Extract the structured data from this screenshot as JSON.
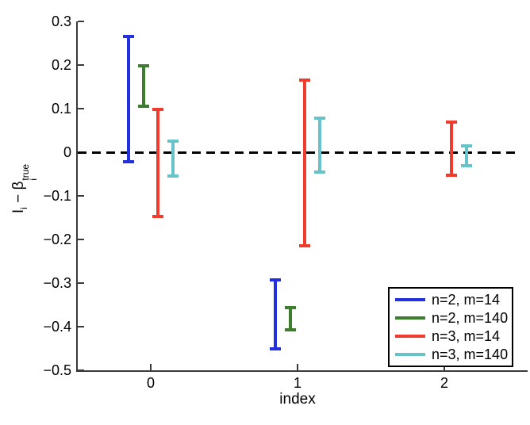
{
  "chart_data": {
    "type": "errorbar",
    "title": "",
    "xlabel": "index",
    "ylabel": "I_i − β_i^true",
    "ylabel_parts": {
      "term1_base": "I",
      "term1_sub": "i",
      "operator": " − ",
      "term2_base": "β",
      "term2_sub": "i",
      "term2_sup": "true"
    },
    "xlim": [
      -0.5,
      2.5
    ],
    "ylim": [
      -0.5,
      0.3
    ],
    "x_ticks": [
      0,
      1,
      2
    ],
    "x_tick_labels": [
      "0",
      "1",
      "2"
    ],
    "y_ticks": [
      0.3,
      0.2,
      0.1,
      0,
      -0.1,
      -0.2,
      -0.3,
      -0.4,
      -0.5
    ],
    "y_tick_labels": [
      "0.3",
      "0.2",
      "0.1",
      "0",
      "−0.1",
      "−0.2",
      "−0.3",
      "−0.4",
      "−0.5"
    ],
    "grid": false,
    "legend_position": "lower right",
    "zero_line": {
      "y": 0,
      "style": "dashed",
      "color": "#000000"
    },
    "series": [
      {
        "name": "n=2, m=14",
        "color": "#2230e0",
        "points": [
          {
            "x": -0.15,
            "low": -0.022,
            "high": 0.265
          },
          {
            "x": 0.85,
            "low": -0.45,
            "high": -0.292
          }
        ]
      },
      {
        "name": "n=2, m=140",
        "color": "#3c7e2d",
        "points": [
          {
            "x": -0.05,
            "low": 0.105,
            "high": 0.198
          },
          {
            "x": 0.95,
            "low": -0.408,
            "high": -0.357
          }
        ]
      },
      {
        "name": "n=3, m=14",
        "color": "#ef3c2e",
        "points": [
          {
            "x": 0.05,
            "low": -0.147,
            "high": 0.098
          },
          {
            "x": 1.05,
            "low": -0.215,
            "high": 0.165
          },
          {
            "x": 2.05,
            "low": -0.053,
            "high": 0.069
          }
        ]
      },
      {
        "name": "n=3, m=140",
        "color": "#66c3c7",
        "points": [
          {
            "x": 0.15,
            "low": -0.055,
            "high": 0.025
          },
          {
            "x": 1.15,
            "low": -0.045,
            "high": 0.078
          },
          {
            "x": 2.15,
            "low": -0.031,
            "high": 0.015
          }
        ]
      }
    ]
  }
}
